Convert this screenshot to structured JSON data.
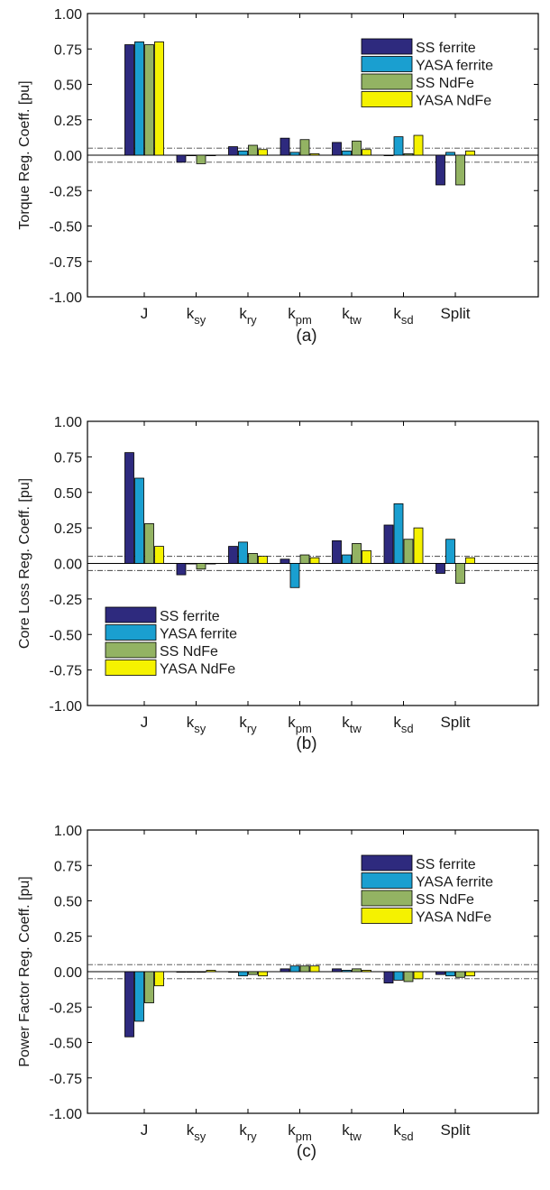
{
  "colors": {
    "SS ferrite": "#2e2a7e",
    "YASA ferrite": "#1a9fd0",
    "SS NdFe": "#93b363",
    "YASA NdFe": "#f5f200",
    "threshold_line": "#444444"
  },
  "chart_data": [
    {
      "type": "bar",
      "panel_label": "(a)",
      "ylabel": "Torque Reg. Coeff. [pu]",
      "categories": [
        "J",
        "k_sy",
        "k_ry",
        "k_pm",
        "k_tw",
        "k_sd",
        "Split"
      ],
      "yticks": [
        "1.00",
        "0.75",
        "0.50",
        "0.25",
        "0.00",
        "-0.25",
        "-0.50",
        "-0.75",
        "-1.00"
      ],
      "ylim": [
        -1,
        1
      ],
      "threshold": 0.05,
      "legend_position": "top-right",
      "series": [
        {
          "name": "SS ferrite",
          "values": [
            0.78,
            -0.05,
            0.06,
            0.12,
            0.09,
            0.0,
            -0.21
          ]
        },
        {
          "name": "YASA ferrite",
          "values": [
            0.8,
            0.0,
            0.03,
            0.02,
            0.03,
            0.13,
            0.02
          ]
        },
        {
          "name": "SS NdFe",
          "values": [
            0.78,
            -0.06,
            0.07,
            0.11,
            0.1,
            0.01,
            -0.21
          ]
        },
        {
          "name": "YASA NdFe",
          "values": [
            0.8,
            0.0,
            0.04,
            0.01,
            0.04,
            0.14,
            0.03
          ]
        }
      ]
    },
    {
      "type": "bar",
      "panel_label": "(b)",
      "ylabel": "Core Loss Reg. Coeff. [pu]",
      "categories": [
        "J",
        "k_sy",
        "k_ry",
        "k_pm",
        "k_tw",
        "k_sd",
        "Split"
      ],
      "yticks": [
        "1.00",
        "0.75",
        "0.50",
        "0.25",
        "0.00",
        "-0.25",
        "-0.50",
        "-0.75",
        "-1.00"
      ],
      "ylim": [
        -1,
        1
      ],
      "threshold": 0.05,
      "legend_position": "bottom-left",
      "series": [
        {
          "name": "SS ferrite",
          "values": [
            0.78,
            -0.08,
            0.12,
            0.03,
            0.16,
            0.27,
            -0.07
          ]
        },
        {
          "name": "YASA ferrite",
          "values": [
            0.6,
            0.0,
            0.15,
            -0.17,
            0.06,
            0.42,
            0.17
          ]
        },
        {
          "name": "SS NdFe",
          "values": [
            0.28,
            -0.04,
            0.07,
            0.06,
            0.14,
            0.17,
            -0.14
          ]
        },
        {
          "name": "YASA NdFe",
          "values": [
            0.12,
            0.0,
            0.05,
            0.04,
            0.09,
            0.25,
            0.04
          ]
        }
      ]
    },
    {
      "type": "bar",
      "panel_label": "(c)",
      "ylabel": "Power Factor Reg. Coeff. [pu]",
      "categories": [
        "J",
        "k_sy",
        "k_ry",
        "k_pm",
        "k_tw",
        "k_sd",
        "Split"
      ],
      "yticks": [
        "1.00",
        "0.75",
        "0.50",
        "0.25",
        "0.00",
        "-0.25",
        "-0.50",
        "-0.75",
        "-1.00"
      ],
      "ylim": [
        -1,
        1
      ],
      "threshold": 0.05,
      "legend_position": "top-right",
      "series": [
        {
          "name": "SS ferrite",
          "values": [
            -0.46,
            0.0,
            0.0,
            0.02,
            0.02,
            -0.08,
            -0.02
          ]
        },
        {
          "name": "YASA ferrite",
          "values": [
            -0.35,
            0.0,
            -0.03,
            0.04,
            0.01,
            -0.06,
            -0.03
          ]
        },
        {
          "name": "SS NdFe",
          "values": [
            -0.22,
            0.0,
            -0.02,
            0.04,
            0.02,
            -0.07,
            -0.04
          ]
        },
        {
          "name": "YASA NdFe",
          "values": [
            -0.1,
            0.01,
            -0.03,
            0.04,
            0.01,
            -0.05,
            -0.03
          ]
        }
      ]
    }
  ]
}
